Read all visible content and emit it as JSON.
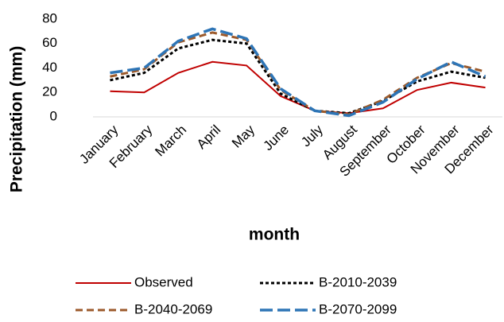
{
  "chart_data": {
    "type": "line",
    "y_label": "Precipitation (mm)",
    "x_label": "month",
    "categories": [
      "January",
      "February",
      "March",
      "April",
      "May",
      "June",
      "July",
      "August",
      "September",
      "October",
      "November",
      "December"
    ],
    "series": [
      {
        "name": "Observed",
        "color": "#c00000",
        "dash": "solid",
        "values": [
          21,
          20,
          36,
          45,
          42,
          17,
          5,
          3,
          7,
          22,
          28,
          24
        ]
      },
      {
        "name": "B-2010-2039",
        "color": "#000000",
        "dash": "dot",
        "values": [
          30,
          36,
          56,
          63,
          60,
          19,
          5,
          3,
          13,
          29,
          37,
          32
        ]
      },
      {
        "name": "B-2040-2069",
        "color": "#9c5a2b",
        "dash": "dash",
        "values": [
          33,
          39,
          61,
          69,
          63,
          22,
          5,
          2,
          14,
          32,
          44,
          37
        ]
      },
      {
        "name": "B-2070-2099",
        "color": "#2e75b6",
        "dash": "longdash",
        "values": [
          36,
          40,
          62,
          72,
          64,
          23,
          5,
          1,
          12,
          31,
          45,
          33
        ]
      }
    ],
    "ylim": [
      0,
      80
    ],
    "yticks": [
      0,
      20,
      40,
      60,
      80
    ],
    "grid": false
  }
}
